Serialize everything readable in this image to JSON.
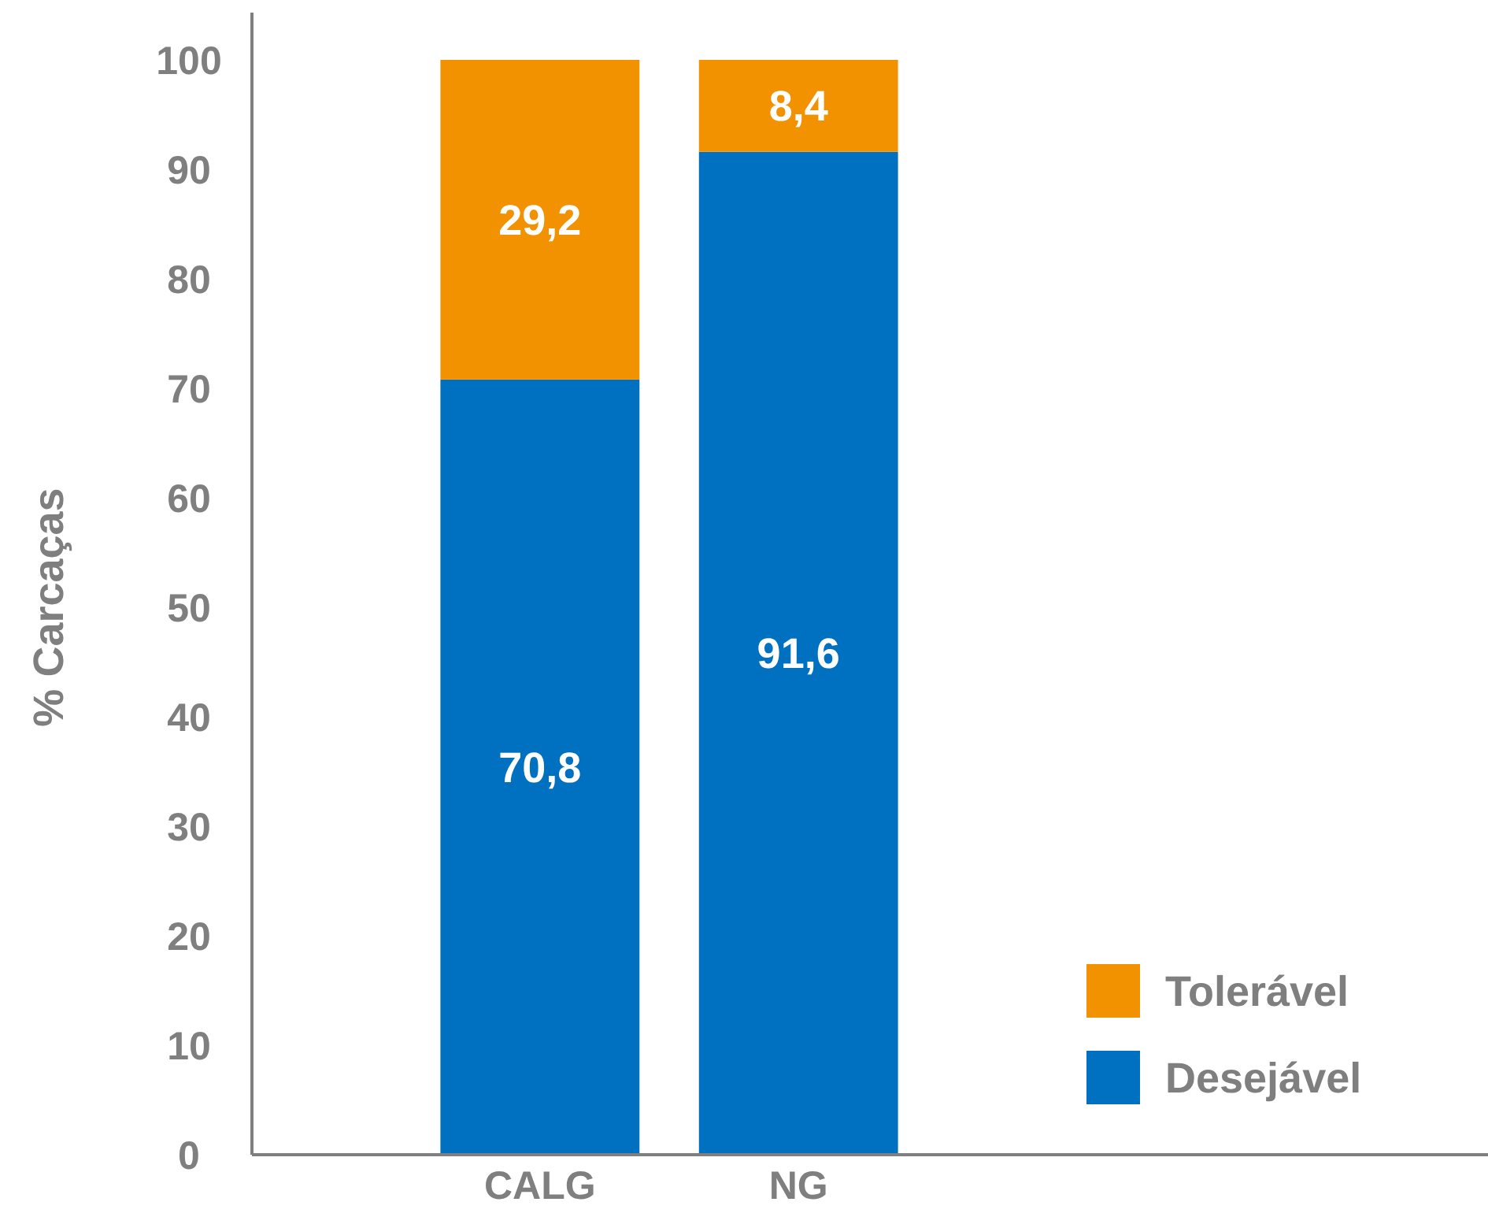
{
  "chart_data": {
    "type": "bar",
    "ylabel": "% Carcaças",
    "categories": [
      "CALG",
      "NG"
    ],
    "series": [
      {
        "name": "Desejável",
        "color": "#0070c0",
        "values": [
          70.8,
          91.6
        ],
        "value_labels": [
          "70,8",
          "91,6"
        ]
      },
      {
        "name": "Tolerável",
        "color": "#f39200",
        "values": [
          29.2,
          8.4
        ],
        "value_labels": [
          "29,2",
          "8,4"
        ]
      }
    ],
    "stacked": true,
    "ylim": [
      0,
      100
    ],
    "yticks": [
      0,
      10,
      20,
      30,
      40,
      50,
      60,
      70,
      80,
      90,
      100
    ],
    "grid": false,
    "legend": "bottom right"
  }
}
